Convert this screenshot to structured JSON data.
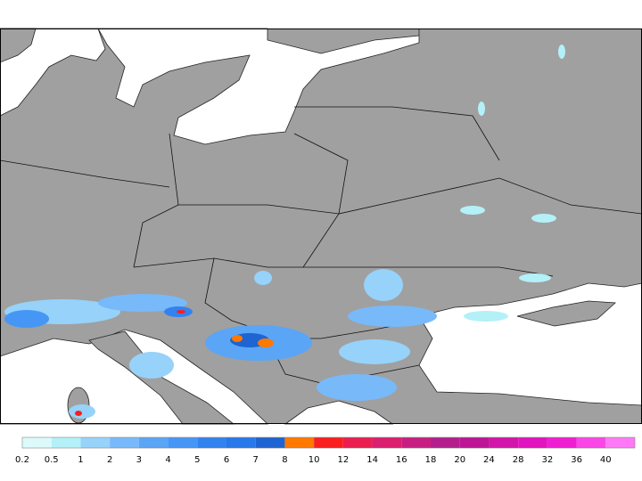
{
  "legend": {
    "items": [
      {
        "label": "0.2",
        "color": "#dcfafa"
      },
      {
        "label": "0.5",
        "color": "#b4f0f8"
      },
      {
        "label": "1",
        "color": "#96d2fa"
      },
      {
        "label": "2",
        "color": "#78b9fa"
      },
      {
        "label": "3",
        "color": "#5aa5f5"
      },
      {
        "label": "4",
        "color": "#4696f5"
      },
      {
        "label": "5",
        "color": "#3282f0"
      },
      {
        "label": "6",
        "color": "#2878eb"
      },
      {
        "label": "7",
        "color": "#1e64d2"
      },
      {
        "label": "8",
        "color": "#ff7800"
      },
      {
        "label": "10",
        "color": "#fa1e1e"
      },
      {
        "label": "12",
        "color": "#eb1e50"
      },
      {
        "label": "14",
        "color": "#dc1e6e"
      },
      {
        "label": "16",
        "color": "#c81e82"
      },
      {
        "label": "18",
        "color": "#b41e8c"
      },
      {
        "label": "20",
        "color": "#be1496"
      },
      {
        "label": "24",
        "color": "#d214aa"
      },
      {
        "label": "28",
        "color": "#e114be"
      },
      {
        "label": "32",
        "color": "#f01ed2"
      },
      {
        "label": "36",
        "color": "#fa46e6"
      },
      {
        "label": "40",
        "color": "#ff78f5"
      }
    ]
  }
}
